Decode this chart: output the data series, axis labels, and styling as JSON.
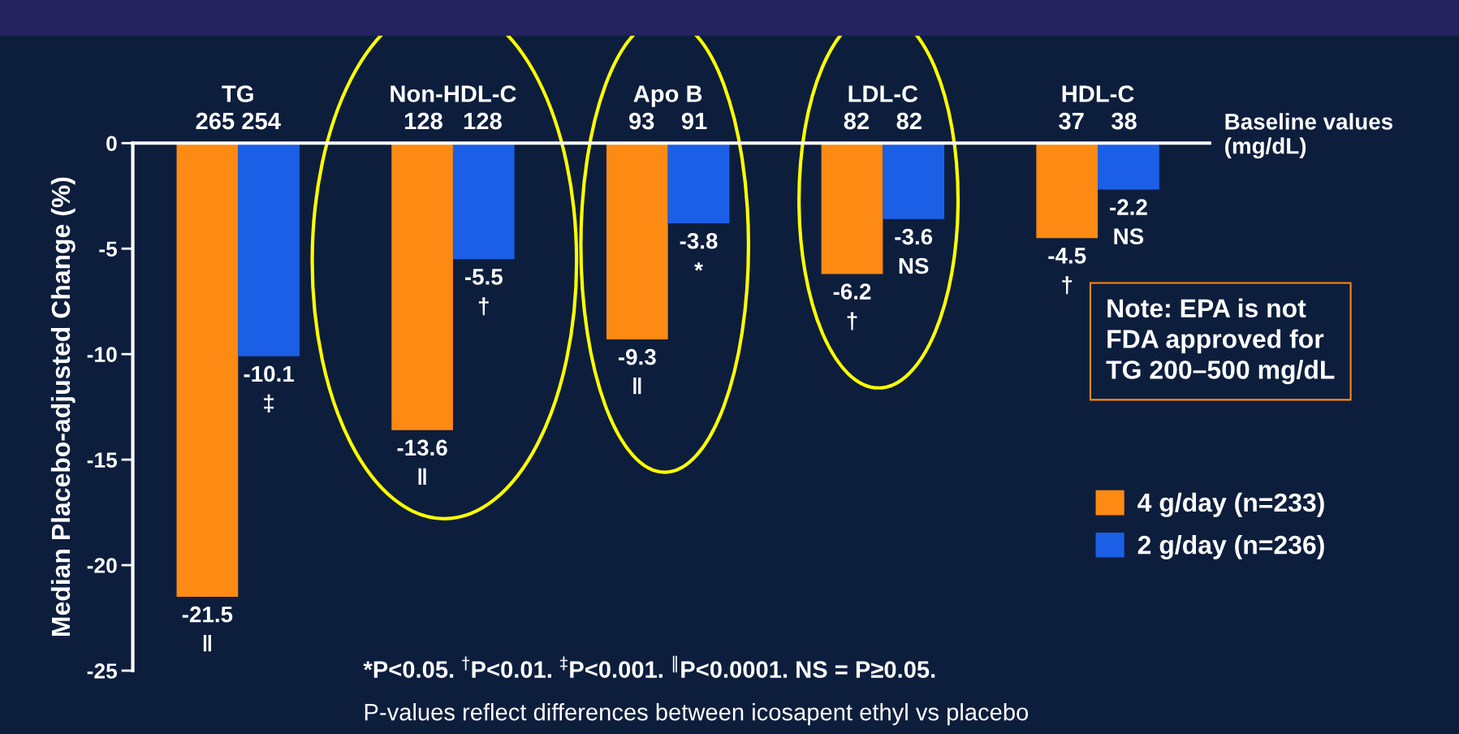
{
  "chart_data": {
    "type": "bar",
    "ylabel": "Median Placebo-adjusted Change (%)",
    "categories": [
      "TG\n265 254",
      "Non-HDL-C\n128   128",
      "Apo B\n93    91",
      "LDL-C\n82    82",
      "HDL-C\n37    38"
    ],
    "series": [
      {
        "name": "4 g/day (n=233)",
        "color": "#fd8a13",
        "values": [
          -21.5,
          -13.6,
          -9.3,
          -6.2,
          -4.5
        ],
        "value_labels": [
          "-21.5\n‖",
          "-13.6\n‖",
          "-9.3\n‖",
          "-6.2\n†",
          "-4.5\n†"
        ]
      },
      {
        "name": "2 g/day (n=236)",
        "color": "#1b5fe6",
        "values": [
          -10.1,
          -5.5,
          -3.8,
          -3.6,
          -2.2
        ],
        "value_labels": [
          "-10.1\n‡",
          "-5.5\n†",
          "-3.8\n*",
          "-3.6\nNS",
          "-2.2\nNS"
        ]
      }
    ],
    "ylim": [
      -25,
      0
    ],
    "yticks": [
      0,
      -5,
      -10,
      -15,
      -20,
      -25
    ],
    "grid": false,
    "legend": "right",
    "annotations": [
      "Baseline values\n(mg/dL)",
      "Note: EPA is not\nFDA approved for\nTG 200–500 mg/dL",
      "*P<0.05. $^{†}$P<0.01. $^{‡}$P<0.001. $^{‖}$P<0.0001. NS = P≥0.05.",
      "P-values reflect differences between icosapent ethyl vs placebo"
    ]
  }
}
